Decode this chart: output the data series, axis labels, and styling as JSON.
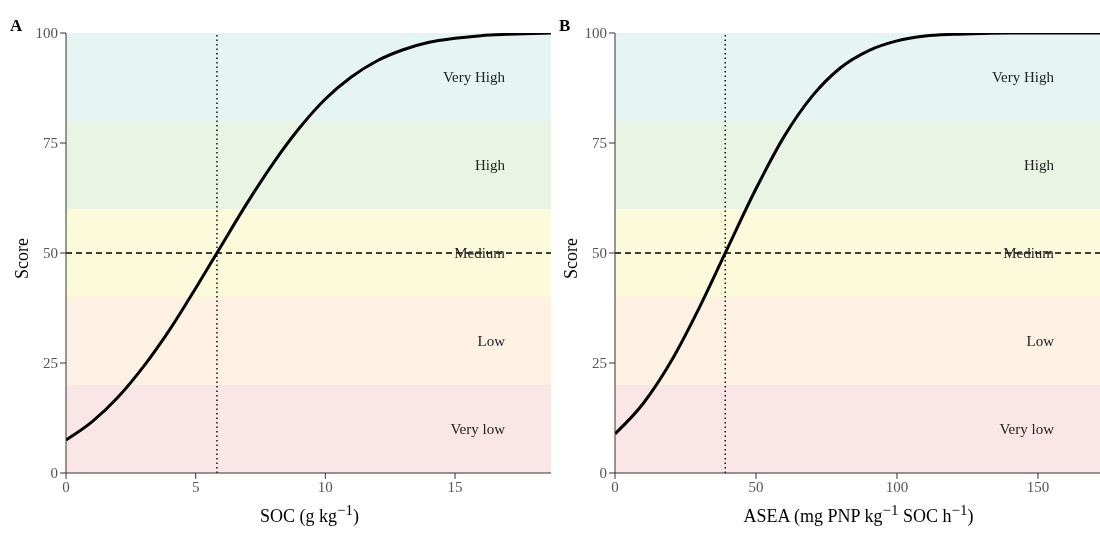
{
  "chart_data": [
    {
      "type": "line",
      "title": "A",
      "xlabel": "SOC (g kg$^{−1}$)",
      "ylabel": "Score",
      "xlim": [
        0,
        18.7
      ],
      "xticks": [
        0,
        5,
        10,
        15
      ],
      "ylim": [
        0,
        100
      ],
      "yticks": [
        0,
        25,
        50,
        75,
        100
      ],
      "grid": false,
      "legend": false,
      "series": [
        {
          "color": "#000000",
          "x": [
            0,
            1,
            2,
            3,
            4,
            5,
            5.82,
            7,
            8,
            9,
            10,
            11,
            12,
            13,
            14,
            15,
            16,
            17,
            18,
            18.7
          ],
          "values": [
            7.5,
            11.6,
            17.2,
            24.3,
            32.6,
            42.0,
            50,
            61.5,
            70.5,
            78.4,
            85.0,
            90.0,
            93.7,
            96.2,
            97.9,
            98.8,
            99.4,
            99.7,
            99.9,
            100
          ]
        }
      ],
      "bands": [
        {
          "axis": "y",
          "from": 0,
          "to": 20,
          "label": "Very low",
          "color": "#fbe6e7"
        },
        {
          "axis": "y",
          "from": 20,
          "to": 40,
          "label": "Low",
          "color": "#fdf1e4"
        },
        {
          "axis": "y",
          "from": 40,
          "to": 60,
          "label": "Medium",
          "color": "#fbfbdc"
        },
        {
          "axis": "y",
          "from": 60,
          "to": 80,
          "label": "High",
          "color": "#eaf4e4"
        },
        {
          "axis": "y",
          "from": 80,
          "to": 100,
          "label": "Very High",
          "color": "#e6f4f3"
        }
      ],
      "ref_lines": [
        {
          "axis": "y",
          "value": 50,
          "label": null,
          "line_style": "dashed",
          "color": "#000000"
        },
        {
          "axis": "x",
          "value": 5.82,
          "label": null,
          "line_style": "dotted",
          "color": "#000000"
        }
      ]
    },
    {
      "type": "line",
      "title": "B",
      "xlabel": "ASEA (mg PNP kg$^{−1}$ SOC h$^{−1}$)",
      "ylabel": "Score",
      "xlim": [
        0,
        172
      ],
      "xticks": [
        0,
        50,
        100,
        150
      ],
      "ylim": [
        0,
        100
      ],
      "yticks": [
        0,
        25,
        50,
        75,
        100
      ],
      "grid": false,
      "legend": false,
      "series": [
        {
          "color": "#000000",
          "x": [
            0,
            10,
            20,
            30,
            39.1,
            50,
            60,
            70,
            80,
            90,
            100,
            110,
            120,
            130,
            140,
            172
          ],
          "values": [
            8.9,
            15.8,
            25.5,
            37.7,
            50,
            64.6,
            76.5,
            85.7,
            92.1,
            96.0,
            98.2,
            99.3,
            99.7,
            99.9,
            100,
            100
          ]
        }
      ],
      "bands": [
        {
          "axis": "y",
          "from": 0,
          "to": 20,
          "label": "Very low",
          "color": "#fbe6e7"
        },
        {
          "axis": "y",
          "from": 20,
          "to": 40,
          "label": "Low",
          "color": "#fdf1e4"
        },
        {
          "axis": "y",
          "from": 40,
          "to": 60,
          "label": "Medium",
          "color": "#fbfbdc"
        },
        {
          "axis": "y",
          "from": 60,
          "to": 80,
          "label": "High",
          "color": "#eaf4e4"
        },
        {
          "axis": "y",
          "from": 80,
          "to": 100,
          "label": "Very High",
          "color": "#e6f4f3"
        }
      ],
      "ref_lines": [
        {
          "axis": "y",
          "value": 50,
          "label": null,
          "line_style": "dashed",
          "color": "#000000"
        },
        {
          "axis": "x",
          "value": 39.1,
          "label": null,
          "line_style": "dotted",
          "color": "#000000"
        }
      ]
    }
  ]
}
